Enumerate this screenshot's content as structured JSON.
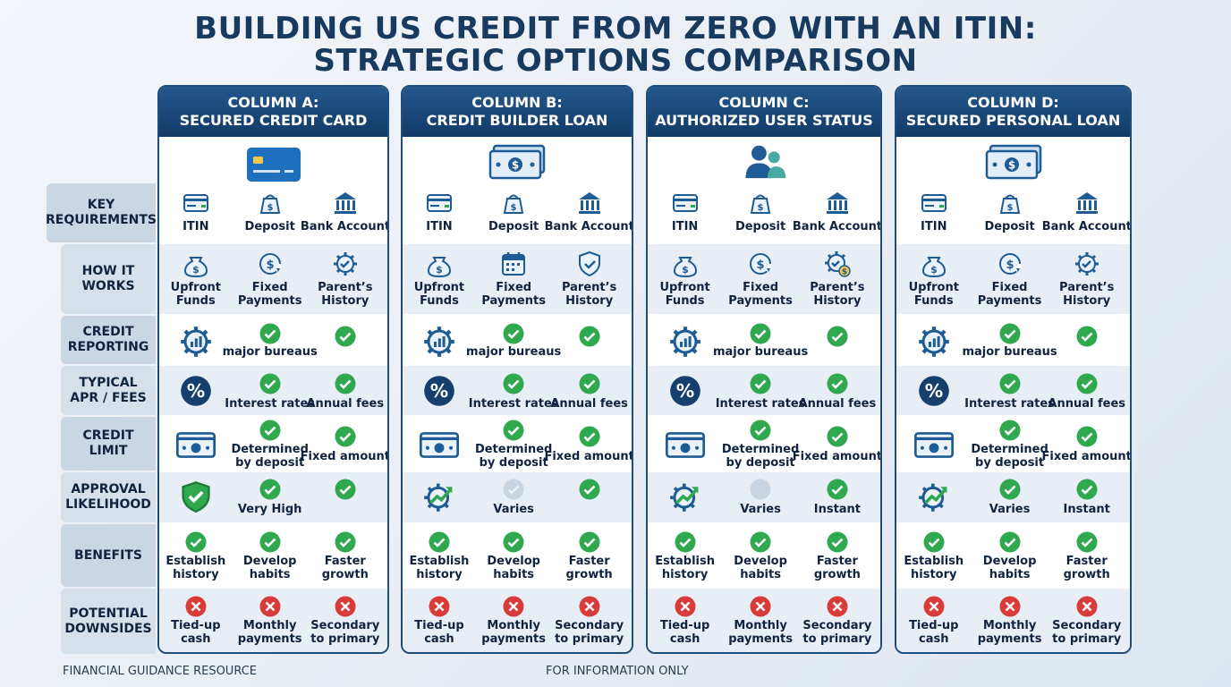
{
  "title": {
    "line1": "BUILDING US CREDIT FROM ZERO WITH AN ITIN:",
    "line2": "STRATEGIC OPTIONS COMPARISON"
  },
  "row_labels": [
    {
      "line1": "KEY",
      "line2": "REQUIREMENTS"
    },
    {
      "line1": "HOW IT",
      "line2": "WORKS"
    },
    {
      "line1": "CREDIT",
      "line2": "REPORTING"
    },
    {
      "line1": "TYPICAL",
      "line2": "APR / FEES"
    },
    {
      "line1": "CREDIT",
      "line2": "LIMIT"
    },
    {
      "line1": "APPROVAL",
      "line2": "LIKELIHOOD"
    },
    {
      "line1": "BENEFITS",
      "line2": ""
    },
    {
      "line1": "POTENTIAL",
      "line2": "DOWNSIDES"
    }
  ],
  "columns": [
    {
      "head1": "COLUMN A:",
      "head2": "SECURED CREDIT CARD",
      "hero_icon": "credit-card-icon",
      "requirements": [
        "ITIN",
        "Deposit",
        "Bank Account"
      ],
      "how": [
        [
          "Upfront",
          "Funds"
        ],
        [
          "Fixed",
          "Payments"
        ],
        [
          "Parent’s",
          "History"
        ]
      ],
      "how_icons": [
        "money-bag-icon",
        "dollar-cycle-icon",
        "gear-check-icon"
      ],
      "reporting": "major bureaus",
      "apr": [
        "Interest rates",
        "Annual fees"
      ],
      "limit": [
        "Determined",
        "by deposit",
        "Fixed amount"
      ],
      "approval_icon": "shield-check-icon",
      "approval": [
        "Very High",
        ""
      ],
      "approval_status": [
        "check",
        "check"
      ],
      "benefits": [
        [
          "Establish",
          "history"
        ],
        [
          "Develop",
          "habits"
        ],
        [
          "Faster",
          "growth"
        ]
      ],
      "downsides": [
        [
          "Tied-up",
          "cash"
        ],
        [
          "Monthly",
          "payments"
        ],
        [
          "Secondary",
          "to primary"
        ]
      ]
    },
    {
      "head1": "COLUMN B:",
      "head2": "CREDIT BUILDER LOAN",
      "hero_icon": "cash-stack-icon",
      "requirements": [
        "ITIN",
        "Deposit",
        "Bank Account"
      ],
      "how": [
        [
          "Upfront",
          "Funds"
        ],
        [
          "Fixed",
          "Payments"
        ],
        [
          "Parent’s",
          "History"
        ]
      ],
      "how_icons": [
        "money-bag-icon",
        "calendar-icon",
        "shield-icon"
      ],
      "reporting": "major bureaus",
      "apr": [
        "Interest rates",
        "Annual fees"
      ],
      "limit": [
        "Determined",
        "by deposit",
        "Fixed amount"
      ],
      "approval_icon": "gear-trend-icon",
      "approval": [
        "Varies",
        ""
      ],
      "approval_status": [
        "faded",
        "check"
      ],
      "benefits": [
        [
          "Establish",
          "history"
        ],
        [
          "Develop",
          "habits"
        ],
        [
          "Faster",
          "growth"
        ]
      ],
      "downsides": [
        [
          "Tied-up",
          "cash"
        ],
        [
          "Monthly",
          "payments"
        ],
        [
          "Secondary",
          "to primary"
        ]
      ]
    },
    {
      "head1": "COLUMN C:",
      "head2": "AUTHORIZED USER STATUS",
      "hero_icon": "users-icon",
      "requirements": [
        "ITIN",
        "Deposit",
        "Bank Account"
      ],
      "how": [
        [
          "Upfront",
          "Funds"
        ],
        [
          "Fixed",
          "Payments"
        ],
        [
          "Parent’s",
          "History"
        ]
      ],
      "how_icons": [
        "money-bag-icon",
        "dollar-cycle-icon",
        "gear-dollar-icon"
      ],
      "reporting": "major bureaus",
      "apr": [
        "Interest rates",
        "Annual fees"
      ],
      "limit": [
        "Determined",
        "by deposit",
        "Fixed amount"
      ],
      "approval_icon": "gear-trend-icon",
      "approval": [
        "Varies",
        "Instant"
      ],
      "approval_status": [
        "grey",
        "check"
      ],
      "benefits": [
        [
          "Establish",
          "history"
        ],
        [
          "Develop",
          "habits"
        ],
        [
          "Faster",
          "growth"
        ]
      ],
      "downsides": [
        [
          "Tied-up",
          "cash"
        ],
        [
          "Monthly",
          "payments"
        ],
        [
          "Secondary",
          "to primary"
        ]
      ]
    },
    {
      "head1": "COLUMN D:",
      "head2": "SECURED PERSONAL LOAN",
      "hero_icon": "cash-stack-icon",
      "requirements": [
        "ITIN",
        "Deposit",
        "Bank Account"
      ],
      "how": [
        [
          "Upfront",
          "Funds"
        ],
        [
          "Fixed",
          "Payments"
        ],
        [
          "Parent’s",
          "History"
        ]
      ],
      "how_icons": [
        "money-bag-icon",
        "dollar-cycle-icon",
        "gear-check-icon"
      ],
      "reporting": "major bureaus",
      "apr": [
        "Interest rates",
        "Annual fees"
      ],
      "limit": [
        "Determined",
        "by deposit",
        "Fixed amount"
      ],
      "approval_icon": "gear-trend-icon",
      "approval": [
        "Varies",
        "Instant"
      ],
      "approval_status": [
        "check",
        "check"
      ],
      "benefits": [
        [
          "Establish",
          "history"
        ],
        [
          "Develop",
          "habits"
        ],
        [
          "Faster",
          "growth"
        ]
      ],
      "downsides": [
        [
          "Tied-up",
          "cash"
        ],
        [
          "Monthly",
          "payments"
        ],
        [
          "Secondary",
          "to primary"
        ]
      ]
    }
  ],
  "footer": {
    "left": "FINANCIAL GUIDANCE RESOURCE",
    "center": "FOR INFORMATION ONLY"
  },
  "colors": {
    "navy": "#173a5e",
    "header": "#1a4674",
    "check": "#2fa84f",
    "cross": "#d93a3a",
    "icon": "#1f5b94"
  }
}
